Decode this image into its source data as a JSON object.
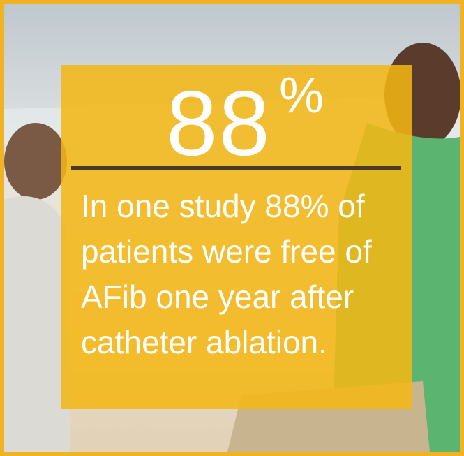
{
  "stat": {
    "number": "88",
    "unit": "%"
  },
  "body": {
    "lines": [
      "In one study 88% of",
      "patients were free of",
      "AFib one year after",
      "catheter ablation."
    ]
  }
}
